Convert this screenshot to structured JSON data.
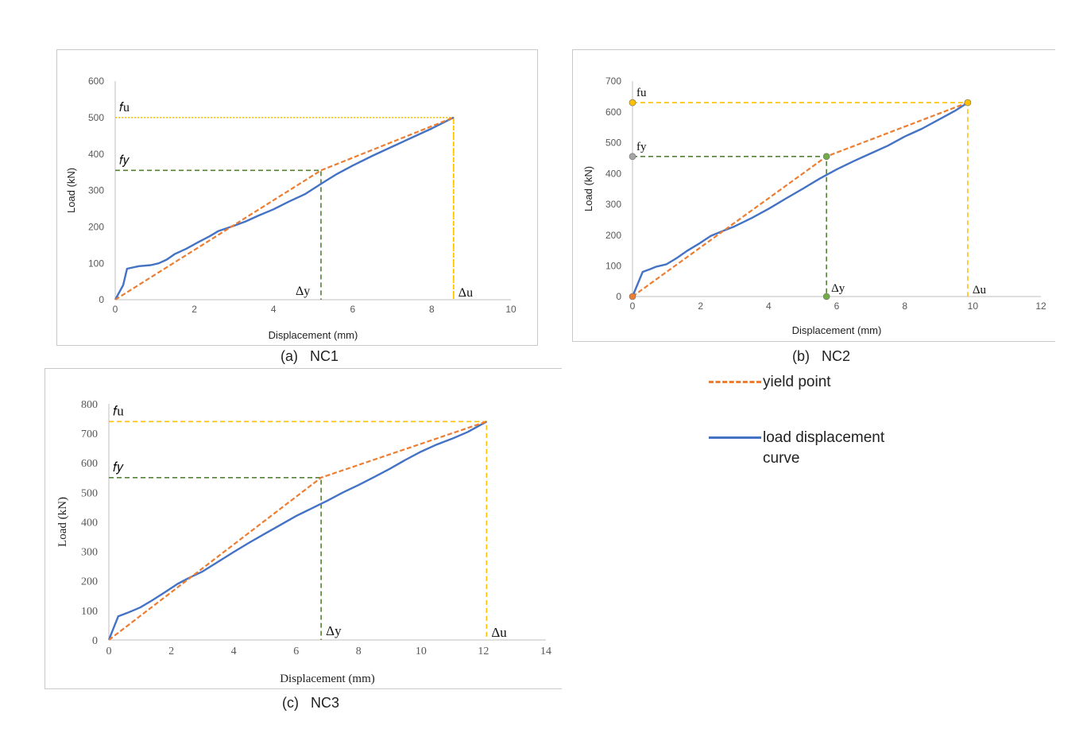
{
  "figure": {
    "captions": {
      "a": "(a)   NC1",
      "b": "(b)   NC2",
      "c": "(c)   NC3"
    },
    "legend": [
      {
        "label": "yield point",
        "color": "#ED7D31",
        "style": "dashed"
      },
      {
        "label": "load displacement curve",
        "color": "#4472C4",
        "style": "solid"
      }
    ],
    "colors": {
      "load_curve": "#4472C4",
      "yield_line": "#ED7D31",
      "fy_guide": "#538135",
      "fu_guide": "#FFC000",
      "axis": "#bfbfbf",
      "tick_text": "#595959"
    }
  },
  "chart_data": [
    {
      "id": "NC1",
      "type": "line",
      "xlabel": "Displacement (mm)",
      "ylabel": "Load (kN)",
      "xlim": [
        0,
        10
      ],
      "ylim": [
        0,
        600
      ],
      "x_ticks": [
        "0",
        "2",
        "4",
        "6",
        "8",
        "10"
      ],
      "y_ticks": [
        "0",
        "100",
        "200",
        "300",
        "400",
        "500",
        "600"
      ],
      "grid": false,
      "annotations": {
        "fu": "𝑓u",
        "fy": "𝑓𝑦",
        "dy": "Δy",
        "du": "Δu"
      },
      "fy": 355,
      "fu": 500,
      "dy": 5.2,
      "du": 8.55,
      "series": [
        {
          "name": "load displacement curve",
          "points": [
            [
              0,
              0
            ],
            [
              0.2,
              40
            ],
            [
              0.3,
              85
            ],
            [
              0.6,
              92
            ],
            [
              0.9,
              95
            ],
            [
              1.1,
              100
            ],
            [
              1.3,
              110
            ],
            [
              1.5,
              125
            ],
            [
              1.8,
              140
            ],
            [
              2.1,
              158
            ],
            [
              2.4,
              175
            ],
            [
              2.6,
              188
            ],
            [
              3.0,
              203
            ],
            [
              3.3,
              215
            ],
            [
              3.6,
              230
            ],
            [
              4.0,
              248
            ],
            [
              4.4,
              270
            ],
            [
              4.8,
              290
            ],
            [
              5.2,
              318
            ],
            [
              5.6,
              345
            ],
            [
              6.0,
              368
            ],
            [
              6.5,
              395
            ],
            [
              7.0,
              420
            ],
            [
              7.5,
              445
            ],
            [
              8.0,
              470
            ],
            [
              8.55,
              500
            ]
          ]
        },
        {
          "name": "yield point",
          "points": [
            [
              0,
              0
            ],
            [
              5.2,
              355
            ],
            [
              8.55,
              500
            ]
          ]
        }
      ]
    },
    {
      "id": "NC2",
      "type": "line",
      "xlabel": "Displacement (mm)",
      "ylabel": "Load (kN)",
      "xlim": [
        0,
        12
      ],
      "ylim": [
        0,
        700
      ],
      "x_ticks": [
        "0",
        "2",
        "4",
        "6",
        "8",
        "10",
        "12"
      ],
      "y_ticks": [
        "0",
        "100",
        "200",
        "300",
        "400",
        "500",
        "600",
        "700"
      ],
      "grid": false,
      "annotations": {
        "fu": "fu",
        "fy": "fy",
        "dy": "Δy",
        "du": "Δu"
      },
      "fy": 455,
      "fu": 630,
      "dy": 5.7,
      "du": 9.85,
      "series": [
        {
          "name": "load displacement curve",
          "points": [
            [
              0,
              0
            ],
            [
              0.15,
              40
            ],
            [
              0.3,
              80
            ],
            [
              0.5,
              88
            ],
            [
              0.7,
              97
            ],
            [
              1.0,
              105
            ],
            [
              1.3,
              125
            ],
            [
              1.6,
              148
            ],
            [
              2.0,
              175
            ],
            [
              2.3,
              197
            ],
            [
              2.7,
              215
            ],
            [
              3.0,
              228
            ],
            [
              3.5,
              255
            ],
            [
              4.0,
              285
            ],
            [
              4.5,
              318
            ],
            [
              5.0,
              350
            ],
            [
              5.5,
              383
            ],
            [
              6.0,
              413
            ],
            [
              6.5,
              440
            ],
            [
              7.0,
              465
            ],
            [
              7.5,
              490
            ],
            [
              8.0,
              520
            ],
            [
              8.5,
              545
            ],
            [
              9.0,
              575
            ],
            [
              9.5,
              605
            ],
            [
              9.85,
              630
            ]
          ]
        },
        {
          "name": "yield point",
          "points": [
            [
              0,
              0
            ],
            [
              5.7,
              455
            ],
            [
              9.85,
              630
            ]
          ]
        }
      ]
    },
    {
      "id": "NC3",
      "type": "line",
      "xlabel": "Displacement (mm)",
      "ylabel": "Load (kN)",
      "xlim": [
        0,
        14
      ],
      "ylim": [
        0,
        800
      ],
      "x_ticks": [
        "0",
        "2",
        "4",
        "6",
        "8",
        "10",
        "12",
        "14"
      ],
      "y_ticks": [
        "0",
        "100",
        "200",
        "300",
        "400",
        "500",
        "600",
        "700",
        "800"
      ],
      "grid": false,
      "annotations": {
        "fu": "𝑓u",
        "fy": "𝑓𝑦",
        "dy": "Δy",
        "du": "Δu"
      },
      "fy": 550,
      "fu": 740,
      "dy": 6.8,
      "du": 12.1,
      "series": [
        {
          "name": "load displacement curve",
          "points": [
            [
              0,
              0
            ],
            [
              0.15,
              40
            ],
            [
              0.3,
              80
            ],
            [
              0.6,
              92
            ],
            [
              1.0,
              110
            ],
            [
              1.4,
              135
            ],
            [
              1.8,
              162
            ],
            [
              2.2,
              190
            ],
            [
              2.6,
              212
            ],
            [
              3.0,
              232
            ],
            [
              3.5,
              265
            ],
            [
              4.0,
              298
            ],
            [
              4.5,
              330
            ],
            [
              5.0,
              360
            ],
            [
              5.5,
              390
            ],
            [
              6.0,
              420
            ],
            [
              6.5,
              446
            ],
            [
              7.0,
              472
            ],
            [
              7.5,
              500
            ],
            [
              8.0,
              525
            ],
            [
              8.5,
              552
            ],
            [
              9.0,
              580
            ],
            [
              9.5,
              610
            ],
            [
              10.0,
              638
            ],
            [
              10.5,
              662
            ],
            [
              11.0,
              682
            ],
            [
              11.5,
              705
            ],
            [
              12.1,
              740
            ]
          ]
        },
        {
          "name": "yield point",
          "points": [
            [
              0,
              0
            ],
            [
              6.8,
              550
            ],
            [
              12.1,
              740
            ]
          ]
        }
      ]
    }
  ]
}
